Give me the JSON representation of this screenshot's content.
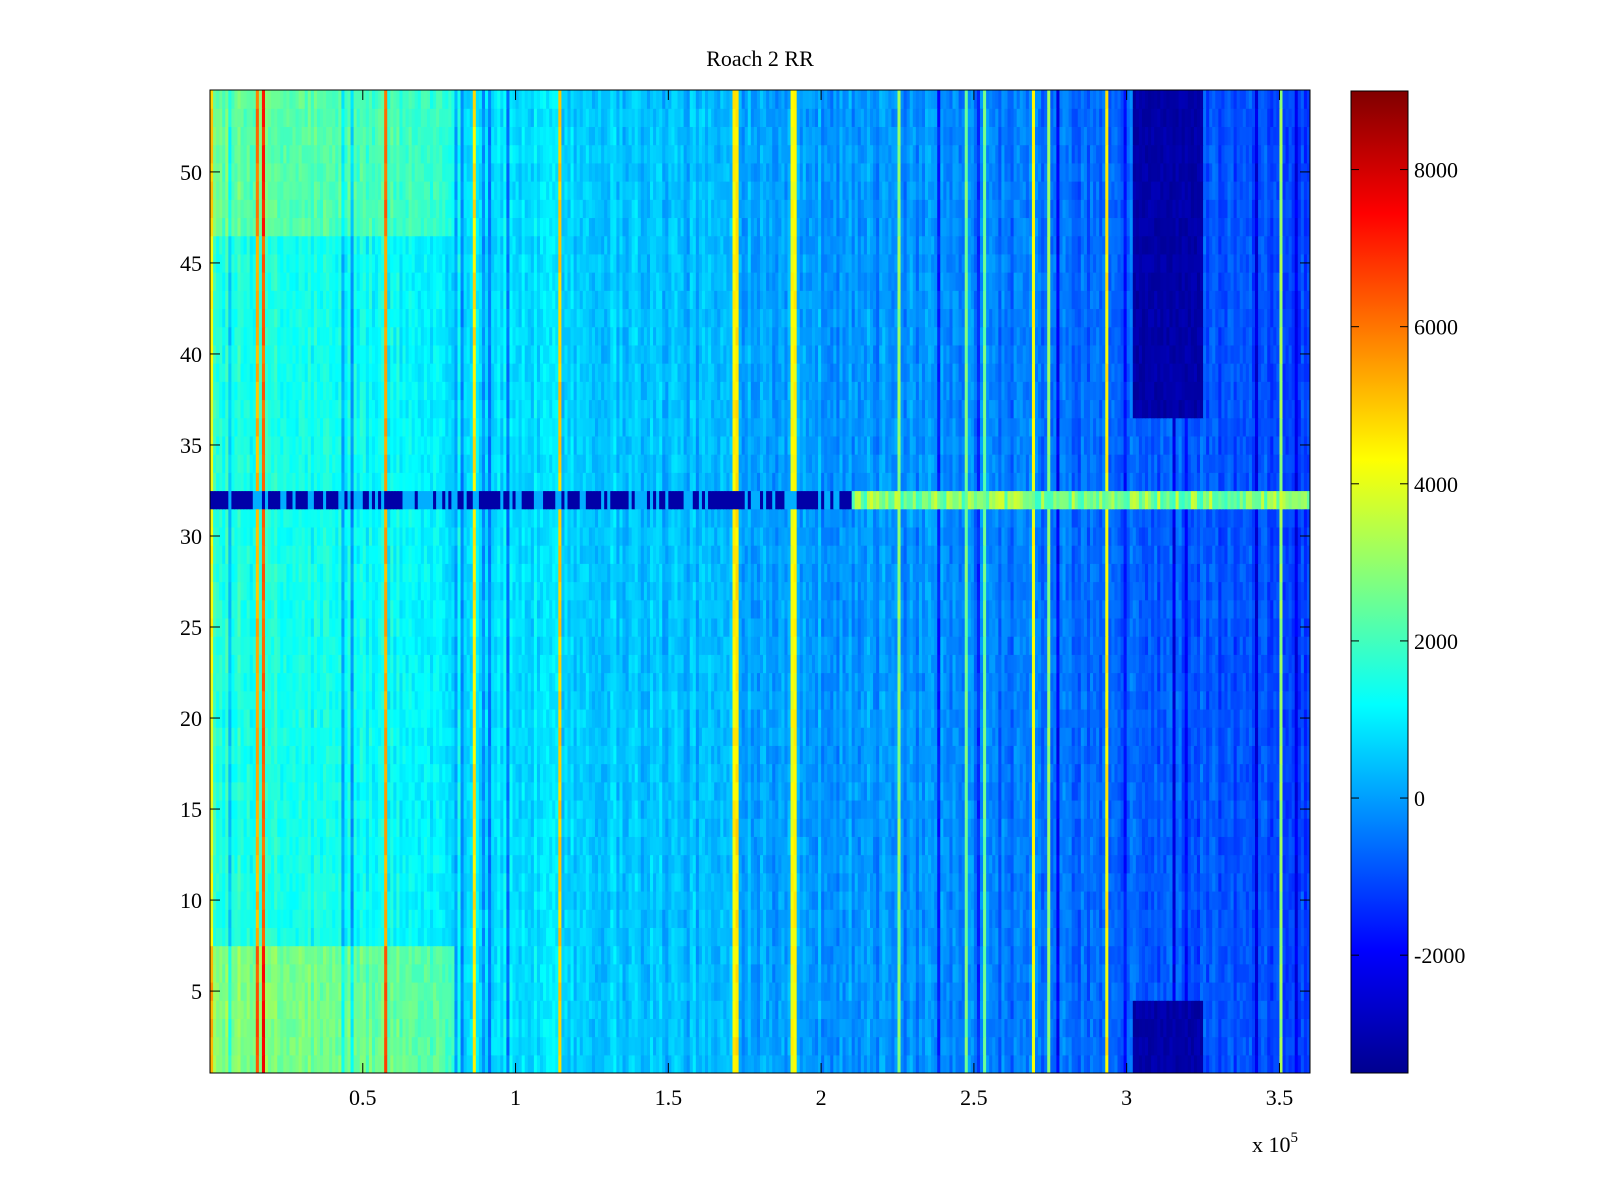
{
  "chart_data": {
    "type": "heatmap",
    "title": "Roach 2 RR",
    "xlabel": "",
    "ylabel": "",
    "x_multiplier_label": "x 10",
    "x_multiplier_exponent": "5",
    "xlim": [
      0,
      3.6
    ],
    "ylim": [
      0.5,
      54.5
    ],
    "x_ticks": [
      0.5,
      1,
      1.5,
      2,
      2.5,
      3,
      3.5
    ],
    "x_tick_labels": [
      "0.5",
      "1",
      "1.5",
      "2",
      "2.5",
      "3",
      "3.5"
    ],
    "y_ticks": [
      5,
      10,
      15,
      20,
      25,
      30,
      35,
      40,
      45,
      50
    ],
    "y_tick_labels": [
      "5",
      "10",
      "15",
      "20",
      "25",
      "30",
      "35",
      "40",
      "45",
      "50"
    ],
    "rows": 54,
    "colormap": "jet",
    "color_range": [
      -3500,
      9000
    ],
    "colorbar_ticks": [
      8000,
      6000,
      4000,
      2000,
      0,
      -2000
    ],
    "colorbar_tick_labels": [
      "8000",
      "6000",
      "4000",
      "2000",
      "0",
      "-2000"
    ],
    "regions": [
      {
        "desc": "background gradient left",
        "x": [
          0,
          0.9
        ],
        "value": 1500
      },
      {
        "desc": "background middle",
        "x": [
          0.9,
          2.5
        ],
        "value": 0
      },
      {
        "desc": "background right",
        "x": [
          2.5,
          3.6
        ],
        "value": -1000
      },
      {
        "desc": "dark band",
        "x": [
          3.02,
          3.25
        ],
        "y": [
          36,
          54.5
        ],
        "value": -3000
      },
      {
        "desc": "dark band bottom",
        "x": [
          3.02,
          3.25
        ],
        "y": [
          0.5,
          5
        ],
        "value": -3300
      },
      {
        "desc": "left bright bottom",
        "x": [
          0,
          0.8
        ],
        "y": [
          0.5,
          8
        ],
        "value": 3000
      },
      {
        "desc": "left bright top",
        "x": [
          0,
          0.8
        ],
        "y": [
          46,
          54.5
        ],
        "value": 2600
      }
    ],
    "row_32_pattern": {
      "row": 32,
      "left_value": -3000,
      "right_value": 3800,
      "transition_x": 2.1
    }
  }
}
